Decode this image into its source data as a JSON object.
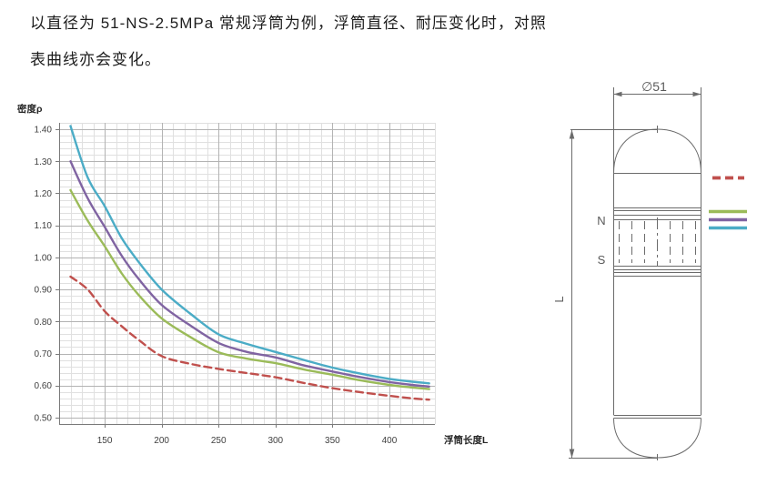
{
  "intro": {
    "line1": "以直径为 51-NS-2.5MPa 常规浮筒为例，浮筒直径、耐压变化时，对照",
    "line2": "表曲线亦会变化。"
  },
  "chart_data": {
    "type": "line",
    "title": "",
    "xlabel": "浮筒长度L",
    "ylabel": "密度ρ",
    "xlim": [
      110,
      440
    ],
    "ylim": [
      0.48,
      1.42
    ],
    "x_major_ticks": [
      150,
      200,
      250,
      300,
      350,
      400
    ],
    "y_major_ticks": [
      0.5,
      0.6,
      0.7,
      0.8,
      0.9,
      1.0,
      1.1,
      1.2,
      1.3,
      1.4
    ],
    "x_minor_step": 10,
    "y_minor_step": 0.02,
    "grid": "major and minor, both axes",
    "legend_position": "color swatches beside float drawing (no text labels)",
    "x": [
      120,
      135,
      150,
      165,
      180,
      200,
      225,
      250,
      275,
      300,
      325,
      350,
      375,
      400,
      420,
      435
    ],
    "series": [
      {
        "id": "red-dashed",
        "color": "#C0504D",
        "style": "dashed",
        "values": [
          0.94,
          0.9,
          0.832,
          0.785,
          0.742,
          0.692,
          0.668,
          0.652,
          0.639,
          0.626,
          0.608,
          0.592,
          0.579,
          0.568,
          0.56,
          0.556
        ]
      },
      {
        "id": "green",
        "color": "#9BBB59",
        "style": "solid",
        "values": [
          1.21,
          1.115,
          1.035,
          0.95,
          0.882,
          0.81,
          0.752,
          0.704,
          0.684,
          0.67,
          0.65,
          0.634,
          0.616,
          0.602,
          0.594,
          0.589
        ]
      },
      {
        "id": "purple",
        "color": "#8064A2",
        "style": "solid",
        "values": [
          1.3,
          1.185,
          1.095,
          1.005,
          0.932,
          0.852,
          0.788,
          0.733,
          0.705,
          0.688,
          0.663,
          0.644,
          0.626,
          0.611,
          0.602,
          0.597
        ]
      },
      {
        "id": "teal",
        "color": "#4BACC6",
        "style": "solid",
        "values": [
          1.41,
          1.25,
          1.16,
          1.06,
          0.985,
          0.9,
          0.825,
          0.76,
          0.73,
          0.705,
          0.68,
          0.656,
          0.637,
          0.621,
          0.612,
          0.607
        ]
      }
    ]
  },
  "diagram": {
    "diameter": "∅51",
    "north": "N",
    "south": "S",
    "length": "L"
  },
  "colors": {
    "grid_minor": "#e0e0e0",
    "grid_major": "#b3b3b3",
    "axis": "#7a7a7a",
    "tick_text": "#404040",
    "axis_title": "#262626",
    "drawing_line": "#6b6b6b",
    "drawing_text": "#595959"
  }
}
